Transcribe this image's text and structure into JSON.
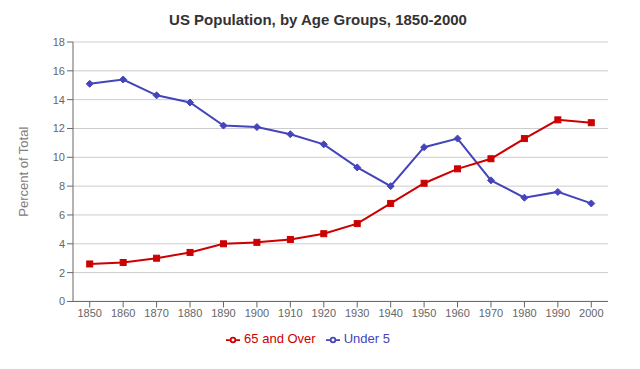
{
  "chart_data": {
    "type": "line",
    "title": "US Population, by Age Groups, 1850-2000",
    "y_label": "Percent of Total",
    "x": [
      1850,
      1860,
      1870,
      1880,
      1890,
      1900,
      1910,
      1920,
      1930,
      1940,
      1950,
      1960,
      1970,
      1980,
      1990,
      2000
    ],
    "series": [
      {
        "name": "Under 5",
        "color": "#4444BB",
        "marker": "diamond",
        "values": [
          15.1,
          15.4,
          14.3,
          13.8,
          12.2,
          12.1,
          11.6,
          10.9,
          9.3,
          8.0,
          10.7,
          11.3,
          8.4,
          7.2,
          7.6,
          6.8
        ]
      },
      {
        "name": "65 and Over",
        "color": "#CC0000",
        "marker": "square",
        "values": [
          2.6,
          2.7,
          3.0,
          3.4,
          4.0,
          4.1,
          4.3,
          4.7,
          5.4,
          6.8,
          8.2,
          9.2,
          9.9,
          11.3,
          12.6,
          12.4
        ]
      }
    ],
    "xlim": [
      1845,
      2005
    ],
    "xticks": [
      1850,
      1860,
      1870,
      1880,
      1890,
      1900,
      1910,
      1920,
      1930,
      1940,
      1950,
      1960,
      1970,
      1980,
      1990,
      2000
    ],
    "ylim": [
      0,
      18
    ],
    "yticks": [
      0,
      2,
      4,
      6,
      8,
      10,
      12,
      14,
      16,
      18
    ],
    "grid": true,
    "legend": "bottom"
  }
}
